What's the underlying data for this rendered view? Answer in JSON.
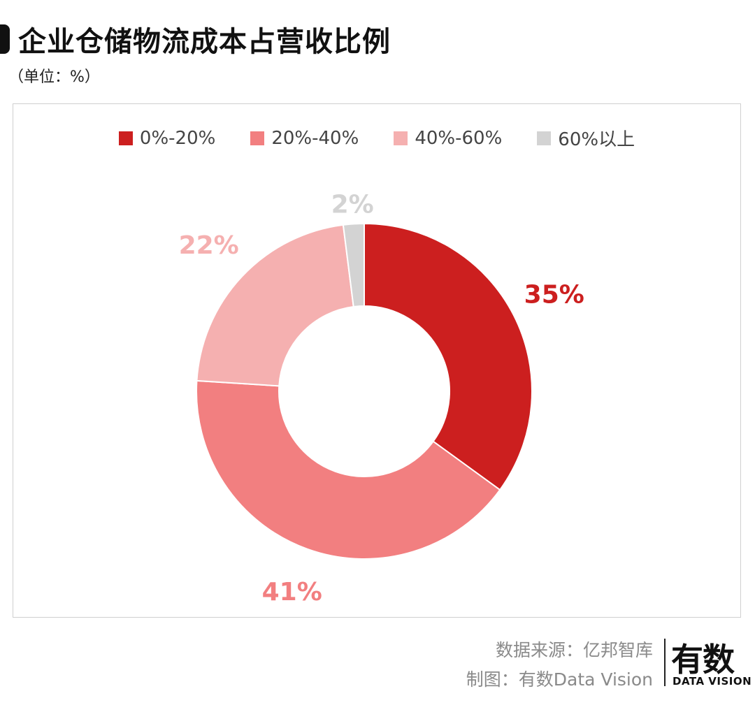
{
  "title": "企业仓储物流成本占营收比例",
  "unit_label": "（单位：%）",
  "chart_data": {
    "type": "pie",
    "donut": true,
    "legend_position": "top",
    "categories": [
      "0%-20%",
      "20%-40%",
      "40%-60%",
      "60%以上"
    ],
    "values": [
      35,
      41,
      22,
      2
    ],
    "labels": [
      "35%",
      "41%",
      "22%",
      "2%"
    ],
    "colors": [
      "#cc1f1f",
      "#f27f80",
      "#f5b0b0",
      "#d3d3d3"
    ]
  },
  "footer": {
    "source": "数据来源：亿邦智库",
    "credit": "制图：有数Data Vision"
  },
  "logo": {
    "main": "有数",
    "sub": "DATA VISION"
  }
}
